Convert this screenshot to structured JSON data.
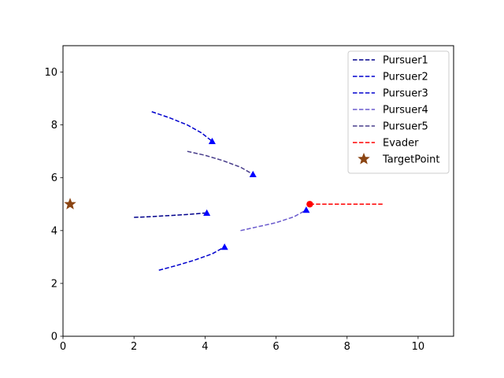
{
  "chart_data": {
    "type": "line",
    "xlim": [
      0,
      11
    ],
    "ylim": [
      0,
      11
    ],
    "xticks": [
      0,
      2,
      4,
      6,
      8,
      10
    ],
    "yticks": [
      0,
      2,
      4,
      6,
      8,
      10
    ],
    "grid": false,
    "legend_position": "top-right",
    "series": [
      {
        "name": "Pursuer1",
        "color": "#00008b",
        "style": "dashed",
        "end_marker": "triangle",
        "points": [
          [
            2.0,
            4.5
          ],
          [
            2.5,
            4.53
          ],
          [
            3.0,
            4.57
          ],
          [
            3.5,
            4.61
          ],
          [
            4.05,
            4.67
          ]
        ]
      },
      {
        "name": "Pursuer2",
        "color": "#0000cd",
        "style": "dashed",
        "end_marker": "triangle",
        "points": [
          [
            2.7,
            2.5
          ],
          [
            3.2,
            2.68
          ],
          [
            3.7,
            2.88
          ],
          [
            4.2,
            3.12
          ],
          [
            4.55,
            3.38
          ]
        ]
      },
      {
        "name": "Pursuer3",
        "color": "#0000cd",
        "style": "dashed",
        "end_marker": "triangle",
        "points": [
          [
            2.5,
            8.5
          ],
          [
            3.0,
            8.27
          ],
          [
            3.5,
            8.0
          ],
          [
            3.9,
            7.7
          ],
          [
            4.2,
            7.38
          ]
        ]
      },
      {
        "name": "Pursuer4",
        "color": "#6a5acd",
        "style": "dashed",
        "end_marker": "triangle",
        "points": [
          [
            5.0,
            4.0
          ],
          [
            5.5,
            4.15
          ],
          [
            6.0,
            4.3
          ],
          [
            6.5,
            4.52
          ],
          [
            6.85,
            4.78
          ]
        ]
      },
      {
        "name": "Pursuer5",
        "color": "#483d8b",
        "style": "dashed",
        "end_marker": "triangle",
        "points": [
          [
            3.5,
            7.0
          ],
          [
            4.0,
            6.85
          ],
          [
            4.5,
            6.65
          ],
          [
            5.0,
            6.4
          ],
          [
            5.35,
            6.13
          ]
        ]
      },
      {
        "name": "Evader",
        "color": "#ff0000",
        "style": "dashed",
        "end_marker": "circle",
        "marker_at": "start",
        "points": [
          [
            6.95,
            5.0
          ],
          [
            9.0,
            5.0
          ]
        ]
      }
    ],
    "target": {
      "name": "TargetPoint",
      "color": "#8b4513",
      "marker": "star",
      "point": [
        0.2,
        5.0
      ]
    },
    "marker_color": "#0000ff",
    "evader_marker_color": "#ff0000"
  }
}
